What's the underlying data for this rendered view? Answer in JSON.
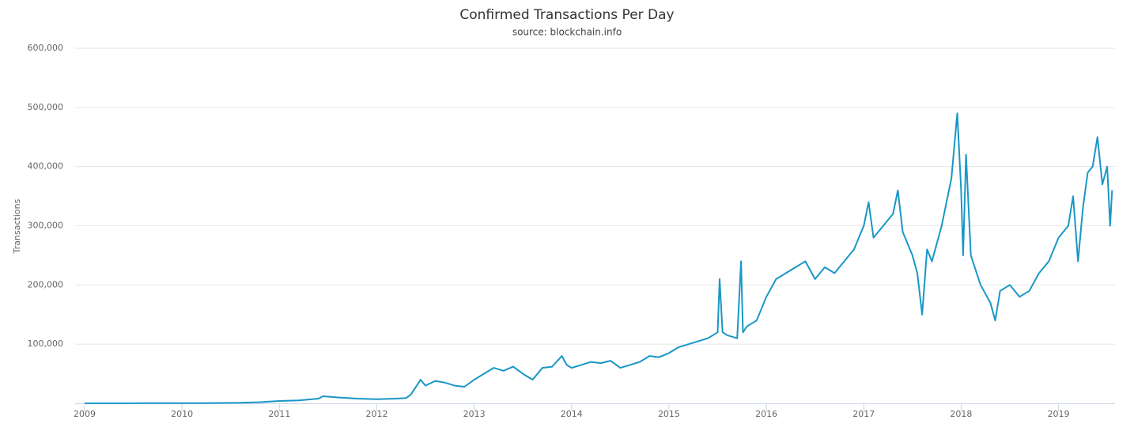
{
  "chart_data": {
    "type": "line",
    "title": "Confirmed Transactions Per Day",
    "subtitle": "source: blockchain.info",
    "y_label": "Transactions",
    "color": "#1997c6",
    "grid": true,
    "xlim": [
      2009,
      2019.58
    ],
    "xticks": [
      2009,
      2010,
      2011,
      2012,
      2013,
      2014,
      2015,
      2016,
      2017,
      2018,
      2019
    ],
    "ylim": [
      0,
      600000
    ],
    "yticks": [
      {
        "value": 100000,
        "label": "100,000"
      },
      {
        "value": 200000,
        "label": "200,000"
      },
      {
        "value": 300000,
        "label": "300,000"
      },
      {
        "value": 400000,
        "label": "400,000"
      },
      {
        "value": 500000,
        "label": "500,000"
      },
      {
        "value": 600000,
        "label": "600,000"
      }
    ],
    "x": [
      2009.0,
      2009.2,
      2009.4,
      2009.6,
      2009.8,
      2010.0,
      2010.2,
      2010.4,
      2010.6,
      2010.8,
      2010.9,
      2011.0,
      2011.2,
      2011.4,
      2011.45,
      2011.6,
      2011.8,
      2012.0,
      2012.2,
      2012.3,
      2012.35,
      2012.45,
      2012.5,
      2012.6,
      2012.7,
      2012.8,
      2012.9,
      2013.0,
      2013.1,
      2013.2,
      2013.3,
      2013.4,
      2013.5,
      2013.6,
      2013.7,
      2013.8,
      2013.9,
      2013.95,
      2014.0,
      2014.1,
      2014.2,
      2014.3,
      2014.4,
      2014.5,
      2014.6,
      2014.7,
      2014.8,
      2014.9,
      2015.0,
      2015.1,
      2015.2,
      2015.3,
      2015.4,
      2015.5,
      2015.52,
      2015.55,
      2015.6,
      2015.7,
      2015.74,
      2015.76,
      2015.8,
      2015.9,
      2016.0,
      2016.1,
      2016.2,
      2016.3,
      2016.4,
      2016.5,
      2016.6,
      2016.7,
      2016.8,
      2016.9,
      2017.0,
      2017.05,
      2017.1,
      2017.2,
      2017.3,
      2017.35,
      2017.4,
      2017.5,
      2017.55,
      2017.6,
      2017.65,
      2017.7,
      2017.8,
      2017.85,
      2017.9,
      2017.96,
      2018.0,
      2018.02,
      2018.05,
      2018.1,
      2018.2,
      2018.3,
      2018.35,
      2018.4,
      2018.5,
      2018.6,
      2018.7,
      2018.8,
      2018.9,
      2019.0,
      2019.1,
      2019.15,
      2019.2,
      2019.25,
      2019.3,
      2019.35,
      2019.4,
      2019.45,
      2019.5,
      2019.53,
      2019.55
    ],
    "values": [
      100,
      150,
      200,
      250,
      300,
      350,
      400,
      700,
      1000,
      2000,
      3000,
      4000,
      5000,
      8000,
      12000,
      10000,
      8000,
      7000,
      8000,
      9000,
      15000,
      40000,
      30000,
      38000,
      35000,
      30000,
      28000,
      40000,
      50000,
      60000,
      55000,
      62000,
      50000,
      40000,
      60000,
      62000,
      80000,
      65000,
      60000,
      65000,
      70000,
      68000,
      72000,
      60000,
      65000,
      70000,
      80000,
      78000,
      85000,
      95000,
      100000,
      105000,
      110000,
      120000,
      210000,
      120000,
      115000,
      110000,
      240000,
      120000,
      130000,
      140000,
      180000,
      210000,
      220000,
      230000,
      240000,
      210000,
      230000,
      220000,
      240000,
      260000,
      300000,
      340000,
      280000,
      300000,
      320000,
      360000,
      290000,
      250000,
      220000,
      150000,
      260000,
      240000,
      300000,
      340000,
      380000,
      490000,
      360000,
      250000,
      420000,
      250000,
      200000,
      170000,
      140000,
      190000,
      200000,
      180000,
      190000,
      220000,
      240000,
      280000,
      300000,
      350000,
      240000,
      330000,
      390000,
      400000,
      450000,
      370000,
      400000,
      300000,
      360000
    ]
  }
}
